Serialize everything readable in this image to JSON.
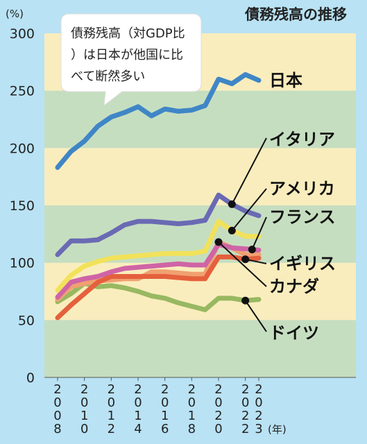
{
  "chart_data": {
    "type": "line",
    "title": "債務残高の推移",
    "ylabel": "(%)",
    "xlabel": "(年)",
    "ylim": [
      0,
      300
    ],
    "y_ticks": [
      0,
      50,
      100,
      150,
      200,
      250,
      300
    ],
    "x_ticks": [
      2008,
      2010,
      2012,
      2014,
      2016,
      2018,
      2020,
      2022,
      2023
    ],
    "x_range": [
      2008,
      2023
    ],
    "grid": false,
    "callout": "債務残高（対GDP比）は日本が他国に比べて断然多い",
    "band_colors": [
      "#f9edbd",
      "#c6dec0"
    ],
    "series": [
      {
        "name": "日本",
        "color": "#3f86c6",
        "x": [
          2008,
          2009,
          2010,
          2011,
          2012,
          2013,
          2014,
          2015,
          2016,
          2017,
          2018,
          2019,
          2020,
          2021,
          2022,
          2023
        ],
        "values": [
          183,
          197,
          206,
          219,
          227,
          231,
          236,
          228,
          234,
          232,
          233,
          237,
          260,
          256,
          264,
          259
        ]
      },
      {
        "name": "イタリア",
        "color": "#6a6ab4",
        "x": [
          2008,
          2009,
          2010,
          2011,
          2012,
          2013,
          2014,
          2015,
          2016,
          2017,
          2018,
          2019,
          2020,
          2021,
          2022,
          2023
        ],
        "values": [
          107,
          119,
          119,
          120,
          126,
          133,
          136,
          136,
          135,
          134,
          135,
          137,
          159,
          151,
          145,
          141
        ]
      },
      {
        "name": "アメリカ",
        "color": "#f2e25a",
        "x": [
          2008,
          2009,
          2010,
          2011,
          2012,
          2013,
          2014,
          2015,
          2016,
          2017,
          2018,
          2019,
          2020,
          2021,
          2022,
          2023
        ],
        "values": [
          76,
          89,
          97,
          101,
          104,
          105,
          106,
          107,
          108,
          108,
          108,
          110,
          136,
          128,
          123,
          123
        ]
      },
      {
        "name": "フランス",
        "color": "#cf64a6",
        "x": [
          2008,
          2009,
          2010,
          2011,
          2012,
          2013,
          2014,
          2015,
          2016,
          2017,
          2018,
          2019,
          2020,
          2021,
          2022,
          2023
        ],
        "values": [
          70,
          83,
          86,
          88,
          92,
          95,
          96,
          97,
          98,
          99,
          98,
          98,
          116,
          113,
          112,
          111
        ]
      },
      {
        "name": "イギリス",
        "color": "#e5603d",
        "x": [
          2008,
          2009,
          2010,
          2011,
          2012,
          2013,
          2014,
          2015,
          2016,
          2017,
          2018,
          2019,
          2020,
          2021,
          2022,
          2023
        ],
        "values": [
          52,
          63,
          73,
          83,
          88,
          88,
          88,
          88,
          88,
          87,
          86,
          86,
          105,
          105,
          103,
          104
        ]
      },
      {
        "name": "カナダ",
        "color": "#f0a071",
        "x": [
          2008,
          2009,
          2010,
          2011,
          2012,
          2013,
          2014,
          2015,
          2016,
          2017,
          2018,
          2019,
          2020,
          2021,
          2022,
          2023
        ],
        "values": [
          68,
          79,
          82,
          84,
          85,
          86,
          86,
          92,
          92,
          91,
          90,
          90,
          118,
          113,
          107,
          107
        ]
      },
      {
        "name": "ドイツ",
        "color": "#98b861",
        "x": [
          2008,
          2009,
          2010,
          2011,
          2012,
          2013,
          2014,
          2015,
          2016,
          2017,
          2018,
          2019,
          2020,
          2021,
          2022,
          2023
        ],
        "values": [
          66,
          73,
          82,
          79,
          80,
          78,
          75,
          71,
          69,
          65,
          62,
          59,
          69,
          69,
          67,
          68
        ]
      }
    ]
  }
}
